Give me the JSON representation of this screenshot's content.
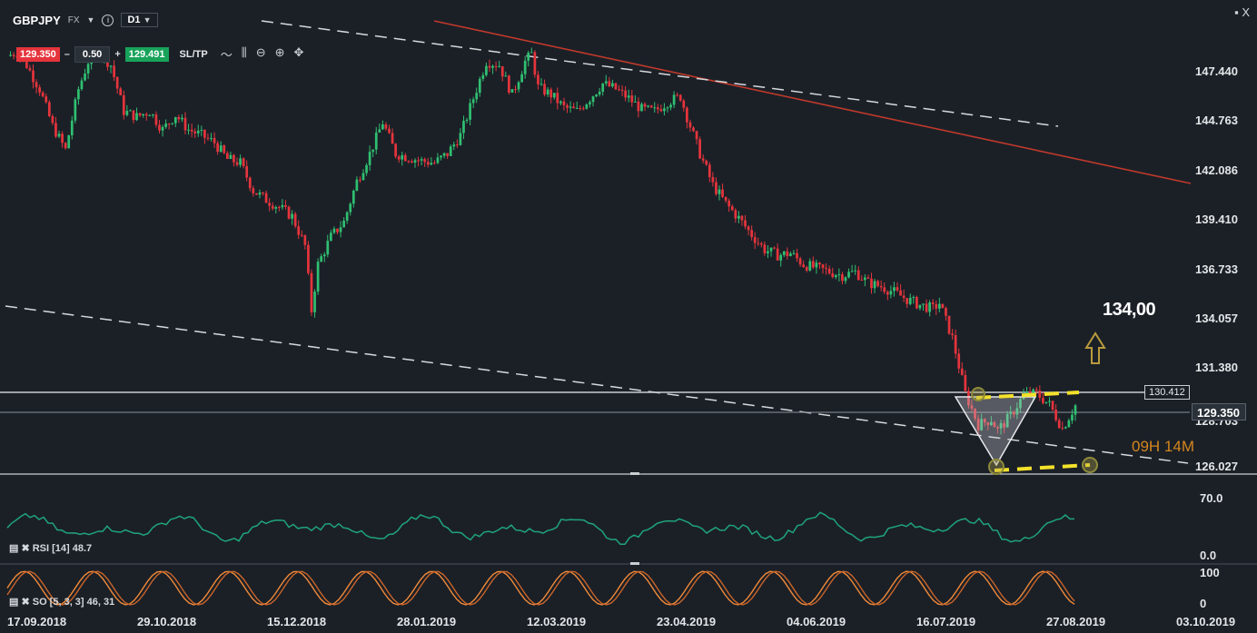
{
  "toolbar": {
    "symbol": "GBPJPY",
    "market": "FX",
    "timeframe": "D1",
    "info": "i"
  },
  "trade": {
    "sell_price": "129.350",
    "qty": "0.50",
    "buy_price": "129.491",
    "sltp": "SL/TP",
    "minus": "–",
    "plus": "+"
  },
  "window": {
    "controls": "▪ X"
  },
  "price_axis": {
    "labels": [
      "147.440",
      "144.763",
      "142.086",
      "139.410",
      "136.733",
      "134.057",
      "131.380",
      "128.703",
      "126.027"
    ]
  },
  "time_axis": {
    "labels": [
      "17.09.2018",
      "29.10.2018",
      "15.12.2018",
      "28.01.2019",
      "12.03.2019",
      "23.04.2019",
      "04.06.2019",
      "16.07.2019",
      "27.08.2019",
      "03.10.2019"
    ]
  },
  "current_price": "129.350",
  "level_label": "130.412",
  "target_label": "134,00",
  "timer": "09H 14M",
  "indicators": {
    "rsi": {
      "label": "RSI [14] 48.7",
      "axis": [
        "70.0",
        "0.0"
      ]
    },
    "so": {
      "label": "SO [5, 3, 3] 46, 31",
      "axis": [
        "100",
        "0"
      ]
    }
  },
  "colors": {
    "bg": "#1b2027",
    "up": "#2fbf71",
    "down": "#e5343c",
    "rsi": "#1fa47a",
    "so1": "#f08a3a",
    "so2": "#c8642a",
    "trend": "#c0392b",
    "dash": "#d6d9dc",
    "hline": "#c9ced3",
    "annot": "#f3e12b",
    "arrow": "#b99a3c"
  },
  "chart_data": {
    "type": "candlestick",
    "ylim": [
      124.5,
      150.0
    ],
    "x": [
      "17.09.2018",
      "29.10.2018",
      "15.12.2018",
      "28.01.2019",
      "12.03.2019",
      "23.04.2019",
      "04.06.2019",
      "16.07.2019",
      "27.08.2019",
      "03.10.2019"
    ],
    "close_path": [
      [
        0,
        148.3
      ],
      [
        3,
        148.5
      ],
      [
        6,
        147.8
      ],
      [
        10,
        146.5
      ],
      [
        14,
        144.5
      ],
      [
        18,
        143.2
      ],
      [
        22,
        146.5
      ],
      [
        25,
        148.0
      ],
      [
        28,
        148.6
      ],
      [
        32,
        147.8
      ],
      [
        36,
        145.3
      ],
      [
        40,
        145.0
      ],
      [
        44,
        145.3
      ],
      [
        48,
        144.3
      ],
      [
        52,
        145.1
      ],
      [
        56,
        144.3
      ],
      [
        60,
        144.0
      ],
      [
        64,
        143.6
      ],
      [
        68,
        142.7
      ],
      [
        72,
        142.5
      ],
      [
        76,
        141.0
      ],
      [
        80,
        140.5
      ],
      [
        84,
        140.1
      ],
      [
        88,
        139.6
      ],
      [
        92,
        138.0
      ],
      [
        94,
        134.5
      ],
      [
        96,
        137.0
      ],
      [
        100,
        138.5
      ],
      [
        104,
        139.3
      ],
      [
        108,
        141.5
      ],
      [
        112,
        143.0
      ],
      [
        116,
        144.7
      ],
      [
        120,
        143.0
      ],
      [
        124,
        142.8
      ],
      [
        128,
        142.6
      ],
      [
        132,
        142.5
      ],
      [
        136,
        143.0
      ],
      [
        140,
        144.0
      ],
      [
        144,
        146.0
      ],
      [
        148,
        148.0
      ],
      [
        152,
        147.8
      ],
      [
        156,
        146.2
      ],
      [
        160,
        148.0
      ],
      [
        162,
        148.4
      ],
      [
        164,
        146.6
      ],
      [
        168,
        146.2
      ],
      [
        172,
        145.5
      ],
      [
        176,
        145.3
      ],
      [
        180,
        146.0
      ],
      [
        184,
        146.8
      ],
      [
        188,
        146.5
      ],
      [
        192,
        146.0
      ],
      [
        196,
        145.4
      ],
      [
        200,
        145.3
      ],
      [
        204,
        145.8
      ],
      [
        208,
        146.1
      ],
      [
        210,
        145.0
      ],
      [
        214,
        143.0
      ],
      [
        218,
        141.3
      ],
      [
        222,
        140.3
      ],
      [
        226,
        139.5
      ],
      [
        230,
        138.6
      ],
      [
        234,
        137.8
      ],
      [
        238,
        137.5
      ],
      [
        242,
        137.6
      ],
      [
        246,
        137.0
      ],
      [
        250,
        136.8
      ],
      [
        254,
        136.6
      ],
      [
        258,
        136.4
      ],
      [
        262,
        136.6
      ],
      [
        266,
        136.0
      ],
      [
        270,
        135.8
      ],
      [
        274,
        135.5
      ],
      [
        278,
        135.1
      ],
      [
        282,
        134.8
      ],
      [
        286,
        134.6
      ],
      [
        288,
        134.9
      ],
      [
        292,
        133.0
      ],
      [
        296,
        130.0
      ],
      [
        300,
        128.3
      ],
      [
        304,
        128.6
      ],
      [
        306,
        128.0
      ],
      [
        310,
        128.8
      ],
      [
        314,
        129.9
      ],
      [
        318,
        130.0
      ],
      [
        322,
        129.4
      ],
      [
        326,
        128.1
      ],
      [
        330,
        129.35
      ]
    ],
    "levels": {
      "horizontal": [
        130.412,
        129.35,
        126.027
      ],
      "target": 134.0
    }
  }
}
